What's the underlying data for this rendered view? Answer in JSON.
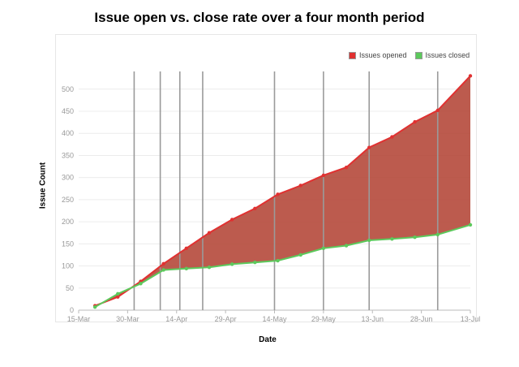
{
  "chart_data": {
    "type": "area",
    "title": "Issue open vs. close rate over a four month period",
    "xlabel": "Date",
    "ylabel": "Issue Count",
    "x_ticks": [
      "15-Mar",
      "30-Mar",
      "14-Apr",
      "29-Apr",
      "14-May",
      "29-May",
      "13-Jun",
      "28-Jun",
      "13-Jul"
    ],
    "y_ticks": [
      0,
      50,
      100,
      150,
      200,
      250,
      300,
      350,
      400,
      450,
      500
    ],
    "ylim": [
      0,
      540
    ],
    "xlim": [
      "2014-03-15",
      "2014-07-13"
    ],
    "x": [
      "2014-03-20",
      "2014-03-27",
      "2014-04-03",
      "2014-04-10",
      "2014-04-17",
      "2014-04-24",
      "2014-05-01",
      "2014-05-08",
      "2014-05-15",
      "2014-05-22",
      "2014-05-29",
      "2014-06-05",
      "2014-06-12",
      "2014-06-19",
      "2014-06-26",
      "2014-07-03",
      "2014-07-13"
    ],
    "series": [
      {
        "name": "Issues opened",
        "color": "#e03131",
        "values": [
          10,
          30,
          65,
          105,
          140,
          175,
          205,
          230,
          262,
          282,
          305,
          323,
          368,
          392,
          426,
          452,
          530
        ]
      },
      {
        "name": "Issues closed",
        "color": "#5cc95c",
        "values": [
          7,
          37,
          60,
          91,
          94,
          97,
          104,
          108,
          112,
          125,
          140,
          146,
          158,
          161,
          165,
          171,
          193
        ]
      }
    ],
    "fill_between_color": "#b5493b",
    "vertical_markers": [
      "2014-04-01",
      "2014-04-09",
      "2014-04-15",
      "2014-04-22",
      "2014-05-14",
      "2014-05-29",
      "2014-06-12",
      "2014-07-03"
    ],
    "legend_position": "top-right",
    "grid": true
  }
}
